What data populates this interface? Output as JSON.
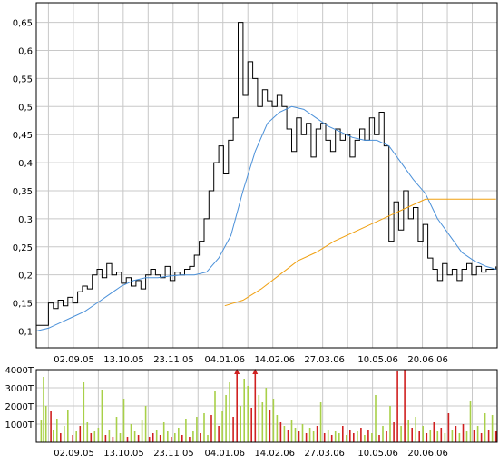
{
  "colors": {
    "background": "#ffffff",
    "grid": "#c8c8c8",
    "axis": "#000000",
    "price": "#000000",
    "ma_short": "#4a90d9",
    "ma_long": "#f0a010",
    "volume_up": "#a8d048",
    "volume_down": "#d02020"
  },
  "chart_data": [
    {
      "type": "line",
      "title": "",
      "xlabel": "",
      "ylabel": "",
      "x_ticks": [
        "02.09.05",
        "13.10.05",
        "23.11.05",
        "04.01.06",
        "14.02.06",
        "27.03.06",
        "10.05.06",
        "20.06.06"
      ],
      "x_tick_days": [
        41,
        82,
        123,
        165,
        206,
        247,
        291,
        332
      ],
      "x_range_days": [
        10,
        389
      ],
      "y_ticks": [
        "0,1",
        "0,15",
        "0,2",
        "0,25",
        "0,3",
        "0,35",
        "0,4",
        "0,45",
        "0,5",
        "0,55",
        "0,6",
        "0,65"
      ],
      "ylim": [
        0.07,
        0.685
      ],
      "grid": true,
      "series": [
        {
          "key": "price",
          "days": [
            10,
            18,
            20,
            24,
            28,
            32,
            36,
            40,
            44,
            48,
            52,
            56,
            60,
            64,
            68,
            72,
            76,
            80,
            84,
            88,
            92,
            96,
            100,
            104,
            108,
            112,
            116,
            120,
            124,
            128,
            132,
            136,
            140,
            144,
            148,
            152,
            156,
            160,
            164,
            168,
            172,
            176,
            180,
            184,
            188,
            192,
            196,
            200,
            204,
            208,
            212,
            216,
            220,
            224,
            228,
            232,
            236,
            240,
            244,
            248,
            252,
            256,
            260,
            264,
            268,
            272,
            276,
            280,
            284,
            288,
            292,
            296,
            300,
            304,
            308,
            312,
            316,
            320,
            324,
            328,
            332,
            336,
            340,
            344,
            348,
            352,
            356,
            360,
            364,
            368,
            372,
            376,
            380,
            384,
            388
          ],
          "values": [
            0.11,
            0.11,
            0.15,
            0.14,
            0.155,
            0.145,
            0.16,
            0.15,
            0.17,
            0.18,
            0.175,
            0.2,
            0.21,
            0.195,
            0.22,
            0.2,
            0.205,
            0.185,
            0.195,
            0.18,
            0.19,
            0.175,
            0.2,
            0.21,
            0.2,
            0.195,
            0.215,
            0.19,
            0.205,
            0.2,
            0.21,
            0.215,
            0.235,
            0.26,
            0.3,
            0.35,
            0.4,
            0.43,
            0.38,
            0.44,
            0.48,
            0.65,
            0.52,
            0.58,
            0.55,
            0.5,
            0.53,
            0.51,
            0.5,
            0.52,
            0.5,
            0.46,
            0.42,
            0.48,
            0.45,
            0.47,
            0.41,
            0.46,
            0.47,
            0.44,
            0.42,
            0.46,
            0.44,
            0.45,
            0.41,
            0.44,
            0.46,
            0.44,
            0.48,
            0.45,
            0.49,
            0.43,
            0.26,
            0.33,
            0.28,
            0.35,
            0.3,
            0.32,
            0.26,
            0.29,
            0.23,
            0.21,
            0.19,
            0.22,
            0.2,
            0.21,
            0.19,
            0.21,
            0.22,
            0.2,
            0.215,
            0.205,
            0.21,
            0.21,
            0.215
          ]
        },
        {
          "key": "ma_short",
          "days": [
            10,
            20,
            30,
            40,
            50,
            60,
            70,
            80,
            90,
            100,
            110,
            120,
            130,
            140,
            150,
            160,
            170,
            180,
            190,
            200,
            210,
            220,
            230,
            240,
            250,
            260,
            270,
            280,
            290,
            300,
            310,
            320,
            330,
            340,
            350,
            360,
            370,
            380,
            388
          ],
          "values": [
            0.1,
            0.105,
            0.115,
            0.125,
            0.135,
            0.15,
            0.165,
            0.18,
            0.19,
            0.195,
            0.195,
            0.198,
            0.2,
            0.2,
            0.205,
            0.23,
            0.27,
            0.35,
            0.42,
            0.47,
            0.49,
            0.5,
            0.495,
            0.48,
            0.465,
            0.455,
            0.445,
            0.44,
            0.44,
            0.43,
            0.4,
            0.37,
            0.345,
            0.3,
            0.27,
            0.24,
            0.225,
            0.215,
            0.21
          ]
        },
        {
          "key": "ma_long",
          "days": [
            165,
            180,
            195,
            210,
            225,
            240,
            255,
            270,
            285,
            300,
            315,
            330,
            345,
            360,
            375,
            388
          ],
          "values": [
            0.145,
            0.155,
            0.175,
            0.2,
            0.225,
            0.24,
            0.26,
            0.275,
            0.29,
            0.305,
            0.32,
            0.335,
            0.335,
            0.335,
            0.335,
            0.335
          ]
        }
      ]
    },
    {
      "type": "bar",
      "title": "",
      "xlabel": "",
      "ylabel": "",
      "y_ticks": [
        "1000T",
        "2000T",
        "3000T",
        "4000T"
      ],
      "y_tick_values": [
        1000,
        2000,
        3000,
        4000
      ],
      "ylim": [
        0,
        4000
      ],
      "x_ticks": [
        "02.09.05",
        "13.10.05",
        "23.11.05",
        "04.01.06",
        "14.02.06",
        "27.03.06",
        "10.05.06",
        "20.06.06"
      ],
      "x_tick_days": [
        41,
        82,
        123,
        165,
        206,
        247,
        291,
        332
      ],
      "x_range_days": [
        10,
        389
      ],
      "grid": true,
      "series": [
        {
          "key": "volume",
          "days": [
            14,
            16,
            18,
            22,
            24,
            27,
            30,
            33,
            36,
            40,
            43,
            46,
            49,
            52,
            55,
            58,
            61,
            64,
            67,
            70,
            73,
            76,
            79,
            82,
            85,
            88,
            91,
            94,
            97,
            100,
            103,
            106,
            109,
            112,
            115,
            118,
            121,
            124,
            127,
            130,
            133,
            136,
            139,
            142,
            145,
            148,
            151,
            154,
            157,
            160,
            163,
            166,
            169,
            172,
            175,
            178,
            181,
            184,
            187,
            190,
            193,
            196,
            199,
            202,
            205,
            208,
            211,
            214,
            217,
            220,
            223,
            226,
            229,
            232,
            235,
            238,
            241,
            244,
            247,
            250,
            253,
            256,
            259,
            262,
            265,
            268,
            271,
            274,
            277,
            280,
            283,
            286,
            289,
            292,
            295,
            298,
            301,
            304,
            307,
            310,
            313,
            316,
            319,
            322,
            325,
            328,
            331,
            334,
            337,
            340,
            343,
            346,
            349,
            352,
            355,
            358,
            361,
            364,
            367,
            370,
            373,
            376,
            379,
            382,
            385,
            388
          ],
          "values": [
            1200,
            3600,
            2000,
            1700,
            700,
            1300,
            500,
            900,
            1800,
            400,
            600,
            900,
            3300,
            1100,
            500,
            600,
            800,
            2900,
            400,
            700,
            300,
            1400,
            500,
            2400,
            300,
            1000,
            600,
            400,
            1200,
            2000,
            300,
            500,
            700,
            400,
            1100,
            600,
            300,
            500,
            800,
            400,
            1300,
            300,
            600,
            1400,
            500,
            1600,
            400,
            1500,
            2800,
            900,
            1700,
            2600,
            3300,
            1400,
            4000,
            2000,
            3500,
            3100,
            1900,
            4000,
            2600,
            2200,
            3000,
            1800,
            2400,
            1500,
            1100,
            900,
            700,
            1200,
            800,
            600,
            1000,
            500,
            800,
            600,
            900,
            2200,
            500,
            700,
            400,
            600,
            500,
            900,
            400,
            700,
            500,
            600,
            800,
            400,
            700,
            500,
            2600,
            400,
            900,
            600,
            2000,
            1100,
            3900,
            900,
            4000,
            1200,
            800,
            1400,
            600,
            900,
            500,
            700,
            1100,
            600,
            800,
            500,
            1600,
            700,
            900,
            500,
            1000,
            600,
            2300,
            700,
            900,
            500,
            1600,
            700,
            1500,
            600
          ],
          "colors": [
            "u",
            "u",
            "u",
            "d",
            "u",
            "u",
            "d",
            "u",
            "u",
            "d",
            "u",
            "d",
            "u",
            "u",
            "d",
            "u",
            "u",
            "u",
            "d",
            "u",
            "d",
            "u",
            "u",
            "u",
            "d",
            "u",
            "u",
            "d",
            "u",
            "u",
            "d",
            "d",
            "u",
            "d",
            "u",
            "u",
            "d",
            "u",
            "u",
            "d",
            "u",
            "d",
            "u",
            "u",
            "d",
            "u",
            "u",
            "d",
            "u",
            "d",
            "u",
            "u",
            "u",
            "d",
            "d",
            "u",
            "u",
            "u",
            "d",
            "d",
            "u",
            "u",
            "u",
            "d",
            "u",
            "u",
            "d",
            "u",
            "d",
            "u",
            "u",
            "d",
            "u",
            "d",
            "u",
            "u",
            "d",
            "u",
            "d",
            "u",
            "d",
            "u",
            "u",
            "d",
            "u",
            "d",
            "d",
            "u",
            "d",
            "u",
            "d",
            "u",
            "u",
            "d",
            "u",
            "d",
            "u",
            "d",
            "d",
            "u",
            "d",
            "u",
            "d",
            "u",
            "d",
            "u",
            "d",
            "u",
            "d",
            "u",
            "d",
            "u",
            "d",
            "u",
            "d",
            "u",
            "d",
            "u",
            "u",
            "d",
            "u",
            "d",
            "u",
            "d",
            "u",
            "d"
          ]
        }
      ],
      "markers": [
        {
          "day": 175,
          "symbol": "up-arrow"
        },
        {
          "day": 190,
          "symbol": "up-arrow"
        }
      ]
    }
  ]
}
